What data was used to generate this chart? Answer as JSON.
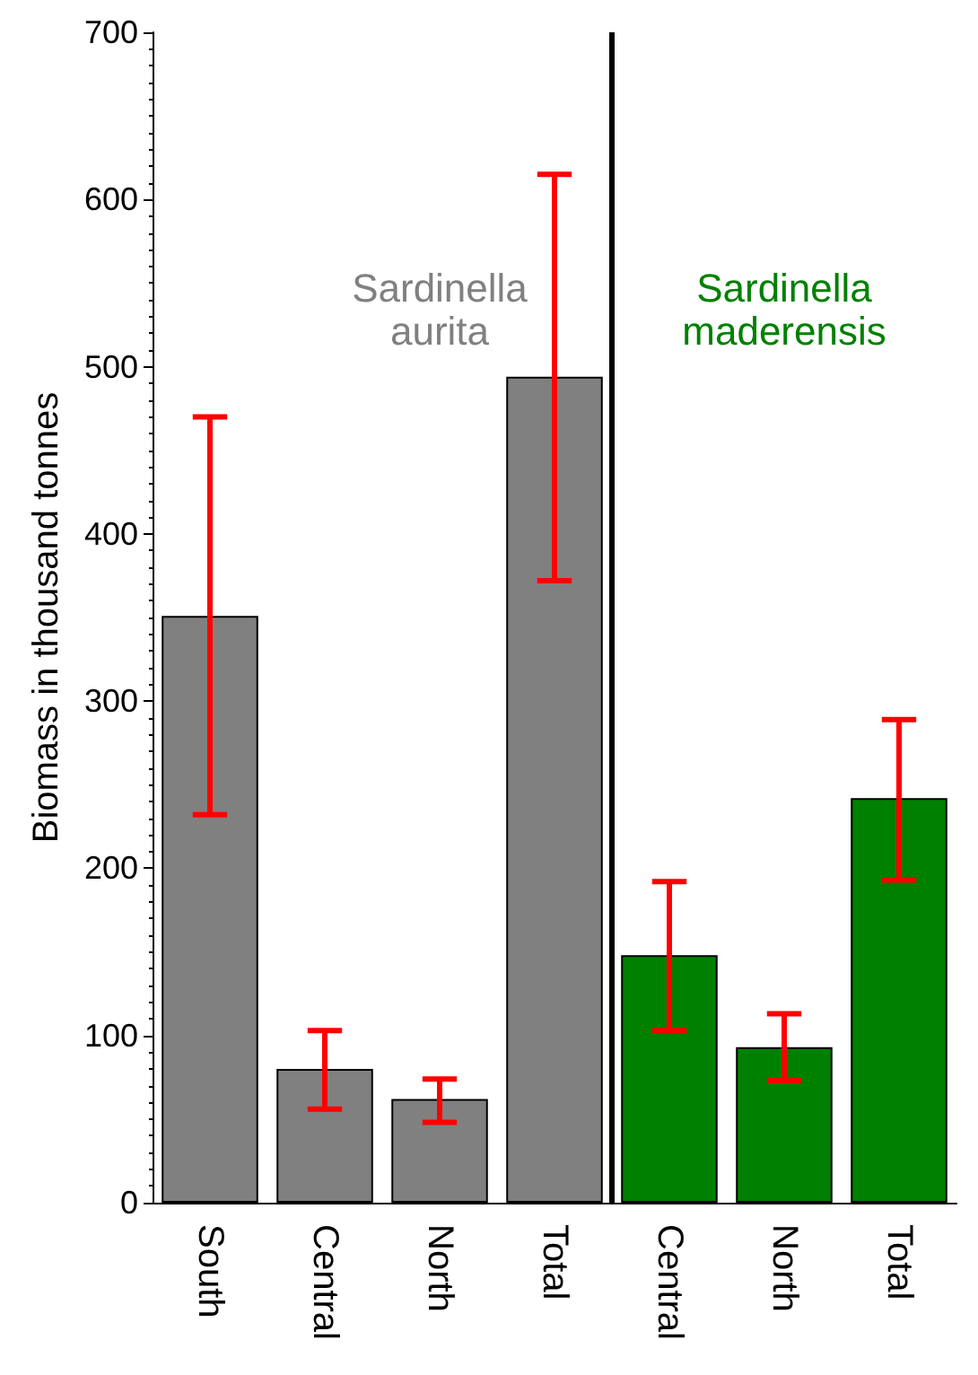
{
  "chart_data": {
    "type": "bar",
    "ylabel": "Biomass in thousand tonnes",
    "categories": [
      "South",
      "Central",
      "North",
      "Total",
      "Central",
      "North",
      "Total"
    ],
    "stacked": true,
    "series": [
      {
        "name": "Sardinella aurita",
        "color": "#808080",
        "values": [
          351,
          80,
          62,
          494,
          null,
          null,
          null
        ],
        "errors": [
          [
            232,
            470
          ],
          [
            56,
            103
          ],
          [
            48,
            74
          ],
          [
            372,
            615
          ],
          null,
          null,
          null
        ]
      },
      {
        "name": "Sardinella maderensis",
        "color": "#008000",
        "values": [
          null,
          null,
          null,
          null,
          148,
          93,
          242
        ],
        "errors": [
          null,
          null,
          null,
          null,
          [
            103,
            192
          ],
          [
            73,
            113
          ],
          [
            193,
            289
          ]
        ]
      }
    ],
    "ylim": [
      0,
      700
    ],
    "yticks": [
      0,
      100,
      200,
      300,
      400,
      500,
      600,
      700
    ],
    "grid": false,
    "legend": false
  }
}
